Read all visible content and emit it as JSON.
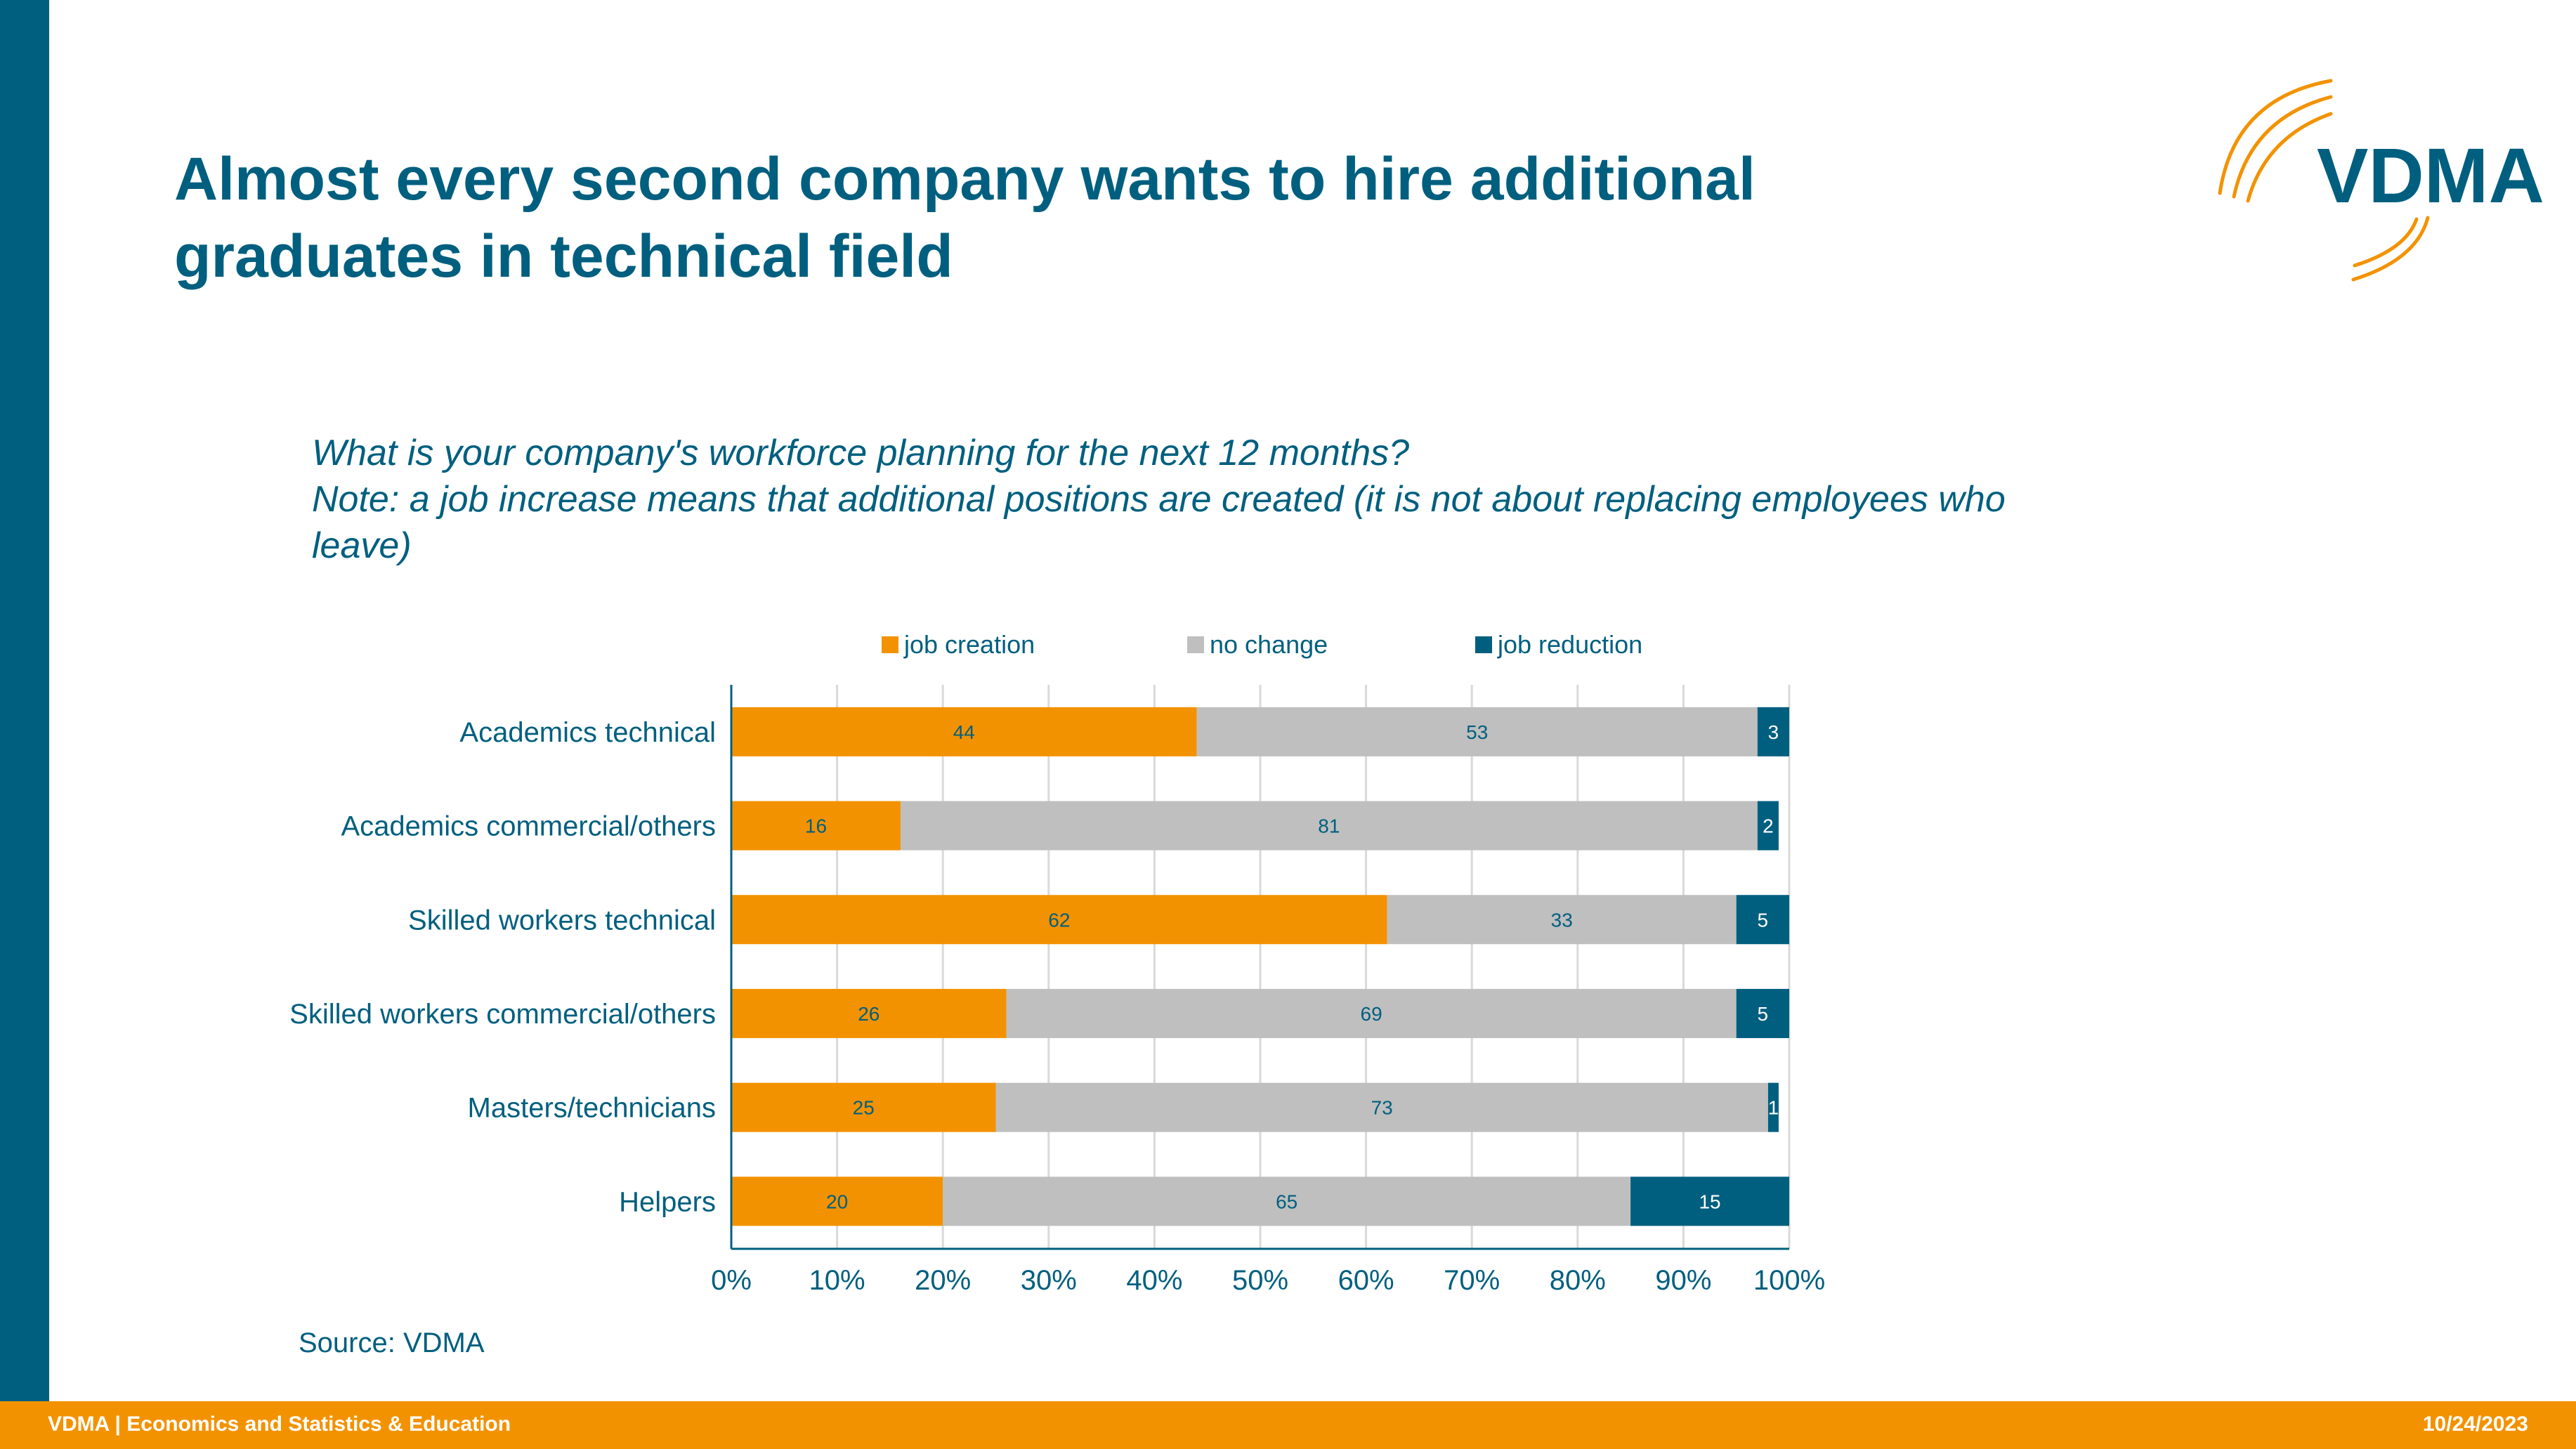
{
  "slide": {
    "title_line1": "Almost every second company wants to hire additional",
    "title_line2": "graduates in technical field",
    "question_line1": "What is your company's workforce planning for the next 12 months?",
    "question_line2": "Note: a job increase means that additional positions are created (it is not about replacing employees who",
    "question_line3": "leave)",
    "source": "Source: VDMA",
    "logo_text": "VDMA",
    "footer_left": "VDMA | Economics and Statistics & Education",
    "footer_right": "10/24/2023"
  },
  "colors": {
    "brand_blue": "#005f7f",
    "brand_orange": "#f39200",
    "no_change_gray": "#bfbfbf",
    "label_blue": "#005f7f"
  },
  "chart_data": {
    "type": "bar",
    "orientation": "horizontal",
    "stacked": "percent",
    "categories": [
      "Academics technical",
      "Academics commercial/others",
      "Skilled workers technical",
      "Skilled workers commercial/others",
      "Masters/technicians",
      "Helpers"
    ],
    "series": [
      {
        "name": "job creation",
        "color": "#f39200",
        "values": [
          44,
          16,
          62,
          26,
          25,
          20
        ]
      },
      {
        "name": "no change",
        "color": "#bfbfbf",
        "values": [
          53,
          81,
          33,
          69,
          73,
          65
        ]
      },
      {
        "name": "job reduction",
        "color": "#005f7f",
        "values": [
          3,
          2,
          5,
          5,
          1,
          15
        ]
      }
    ],
    "xlim": [
      0,
      100
    ],
    "x_ticks": [
      "0%",
      "10%",
      "20%",
      "30%",
      "40%",
      "50%",
      "60%",
      "70%",
      "80%",
      "90%",
      "100%"
    ],
    "grid": true,
    "legend": "top"
  }
}
